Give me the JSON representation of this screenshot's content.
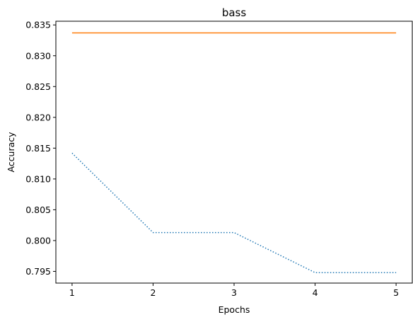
{
  "chart_data": {
    "type": "line",
    "title": "bass",
    "xlabel": "Epochs",
    "ylabel": "Accuracy",
    "x": [
      1,
      2,
      3,
      4,
      5
    ],
    "xticks": [
      "1",
      "2",
      "3",
      "4",
      "5"
    ],
    "yticks": [
      "0.795",
      "0.800",
      "0.805",
      "0.810",
      "0.815",
      "0.820",
      "0.825",
      "0.830",
      "0.835"
    ],
    "ylim": [
      0.7931,
      0.8356
    ],
    "xlim": [
      0.8,
      5.2
    ],
    "grid": false,
    "series": [
      {
        "values": [
          0.8337,
          0.8337,
          0.8337,
          0.8337,
          0.8337
        ],
        "color": "#ff7f0e",
        "style": "solid"
      },
      {
        "values": [
          0.8142,
          0.8013,
          0.8013,
          0.7948,
          0.7948
        ],
        "color": "#1f77b4",
        "style": "dotted"
      }
    ]
  }
}
